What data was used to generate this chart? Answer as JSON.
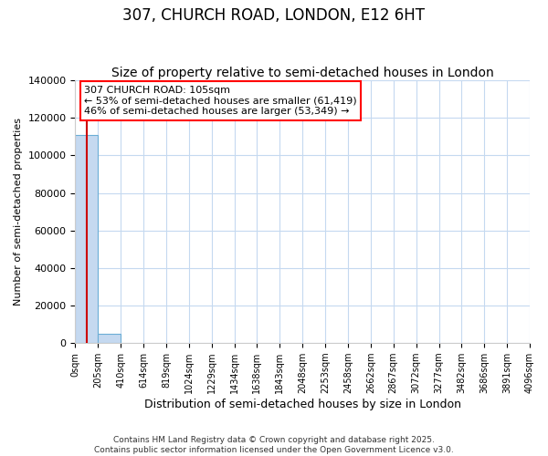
{
  "title": "307, CHURCH ROAD, LONDON, E12 6HT",
  "subtitle": "Size of property relative to semi-detached houses in London",
  "xlabel": "Distribution of semi-detached houses by size in London",
  "ylabel": "Number of semi-detached properties",
  "bin_edges": [
    0,
    205,
    410,
    614,
    819,
    1024,
    1229,
    1434,
    1638,
    1843,
    2048,
    2253,
    2458,
    2662,
    2867,
    3072,
    3277,
    3482,
    3686,
    3891,
    4096
  ],
  "bar_heights": [
    111000,
    5000,
    0,
    0,
    0,
    0,
    0,
    0,
    0,
    0,
    0,
    0,
    0,
    0,
    0,
    0,
    0,
    0,
    0,
    0
  ],
  "bar_color": "#c5d9f0",
  "bar_edge_color": "#6baed6",
  "ylim": [
    0,
    140000
  ],
  "yticks": [
    0,
    20000,
    40000,
    60000,
    80000,
    100000,
    120000,
    140000
  ],
  "property_size": 105,
  "vline_color": "#cc0000",
  "annotation_text": "307 CHURCH ROAD: 105sqm\n← 53% of semi-detached houses are smaller (61,419)\n46% of semi-detached houses are larger (53,349) →",
  "footer_text": "Contains HM Land Registry data © Crown copyright and database right 2025.\nContains public sector information licensed under the Open Government Licence v3.0.",
  "bg_color": "#ffffff",
  "grid_color": "#c5d9f0",
  "title_fontsize": 12,
  "subtitle_fontsize": 10,
  "annotation_fontsize": 8
}
